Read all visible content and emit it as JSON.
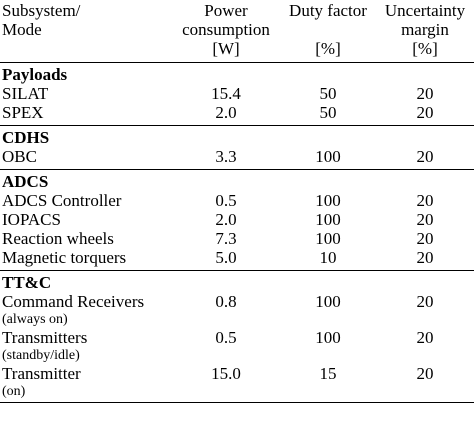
{
  "header": {
    "col1": [
      "Subsystem/",
      "Mode"
    ],
    "col2": [
      "Power",
      "consumption",
      "[W]"
    ],
    "col3": [
      "Duty factor",
      "",
      "[%]"
    ],
    "col4": [
      "Uncertainty",
      "margin",
      "[%]"
    ]
  },
  "groups": [
    {
      "name": "Payloads",
      "rows": [
        {
          "label": "SILAT",
          "sub": "",
          "power": "15.4",
          "duty": "50",
          "margin": "20"
        },
        {
          "label": "SPEX",
          "sub": "",
          "power": "2.0",
          "duty": "50",
          "margin": "20"
        }
      ]
    },
    {
      "name": "CDHS",
      "rows": [
        {
          "label": "OBC",
          "sub": "",
          "power": "3.3",
          "duty": "100",
          "margin": "20"
        }
      ]
    },
    {
      "name": "ADCS",
      "rows": [
        {
          "label": "ADCS Controller",
          "sub": "",
          "power": "0.5",
          "duty": "100",
          "margin": "20"
        },
        {
          "label": "IOPACS",
          "sub": "",
          "power": "2.0",
          "duty": "100",
          "margin": "20"
        },
        {
          "label": "Reaction wheels",
          "sub": "",
          "power": "7.3",
          "duty": "100",
          "margin": "20"
        },
        {
          "label": "Magnetic torquers",
          "sub": "",
          "power": "5.0",
          "duty": "10",
          "margin": "20"
        }
      ]
    },
    {
      "name": "TT&C",
      "rows": [
        {
          "label": "Command Receivers",
          "sub": "(always on)",
          "power": "0.8",
          "duty": "100",
          "margin": "20"
        },
        {
          "label": "Transmitters",
          "sub": "(standby/idle)",
          "power": "0.5",
          "duty": "100",
          "margin": "20"
        },
        {
          "label": "Transmitter",
          "sub": "(on)",
          "power": "15.0",
          "duty": "15",
          "margin": "20"
        }
      ]
    }
  ]
}
